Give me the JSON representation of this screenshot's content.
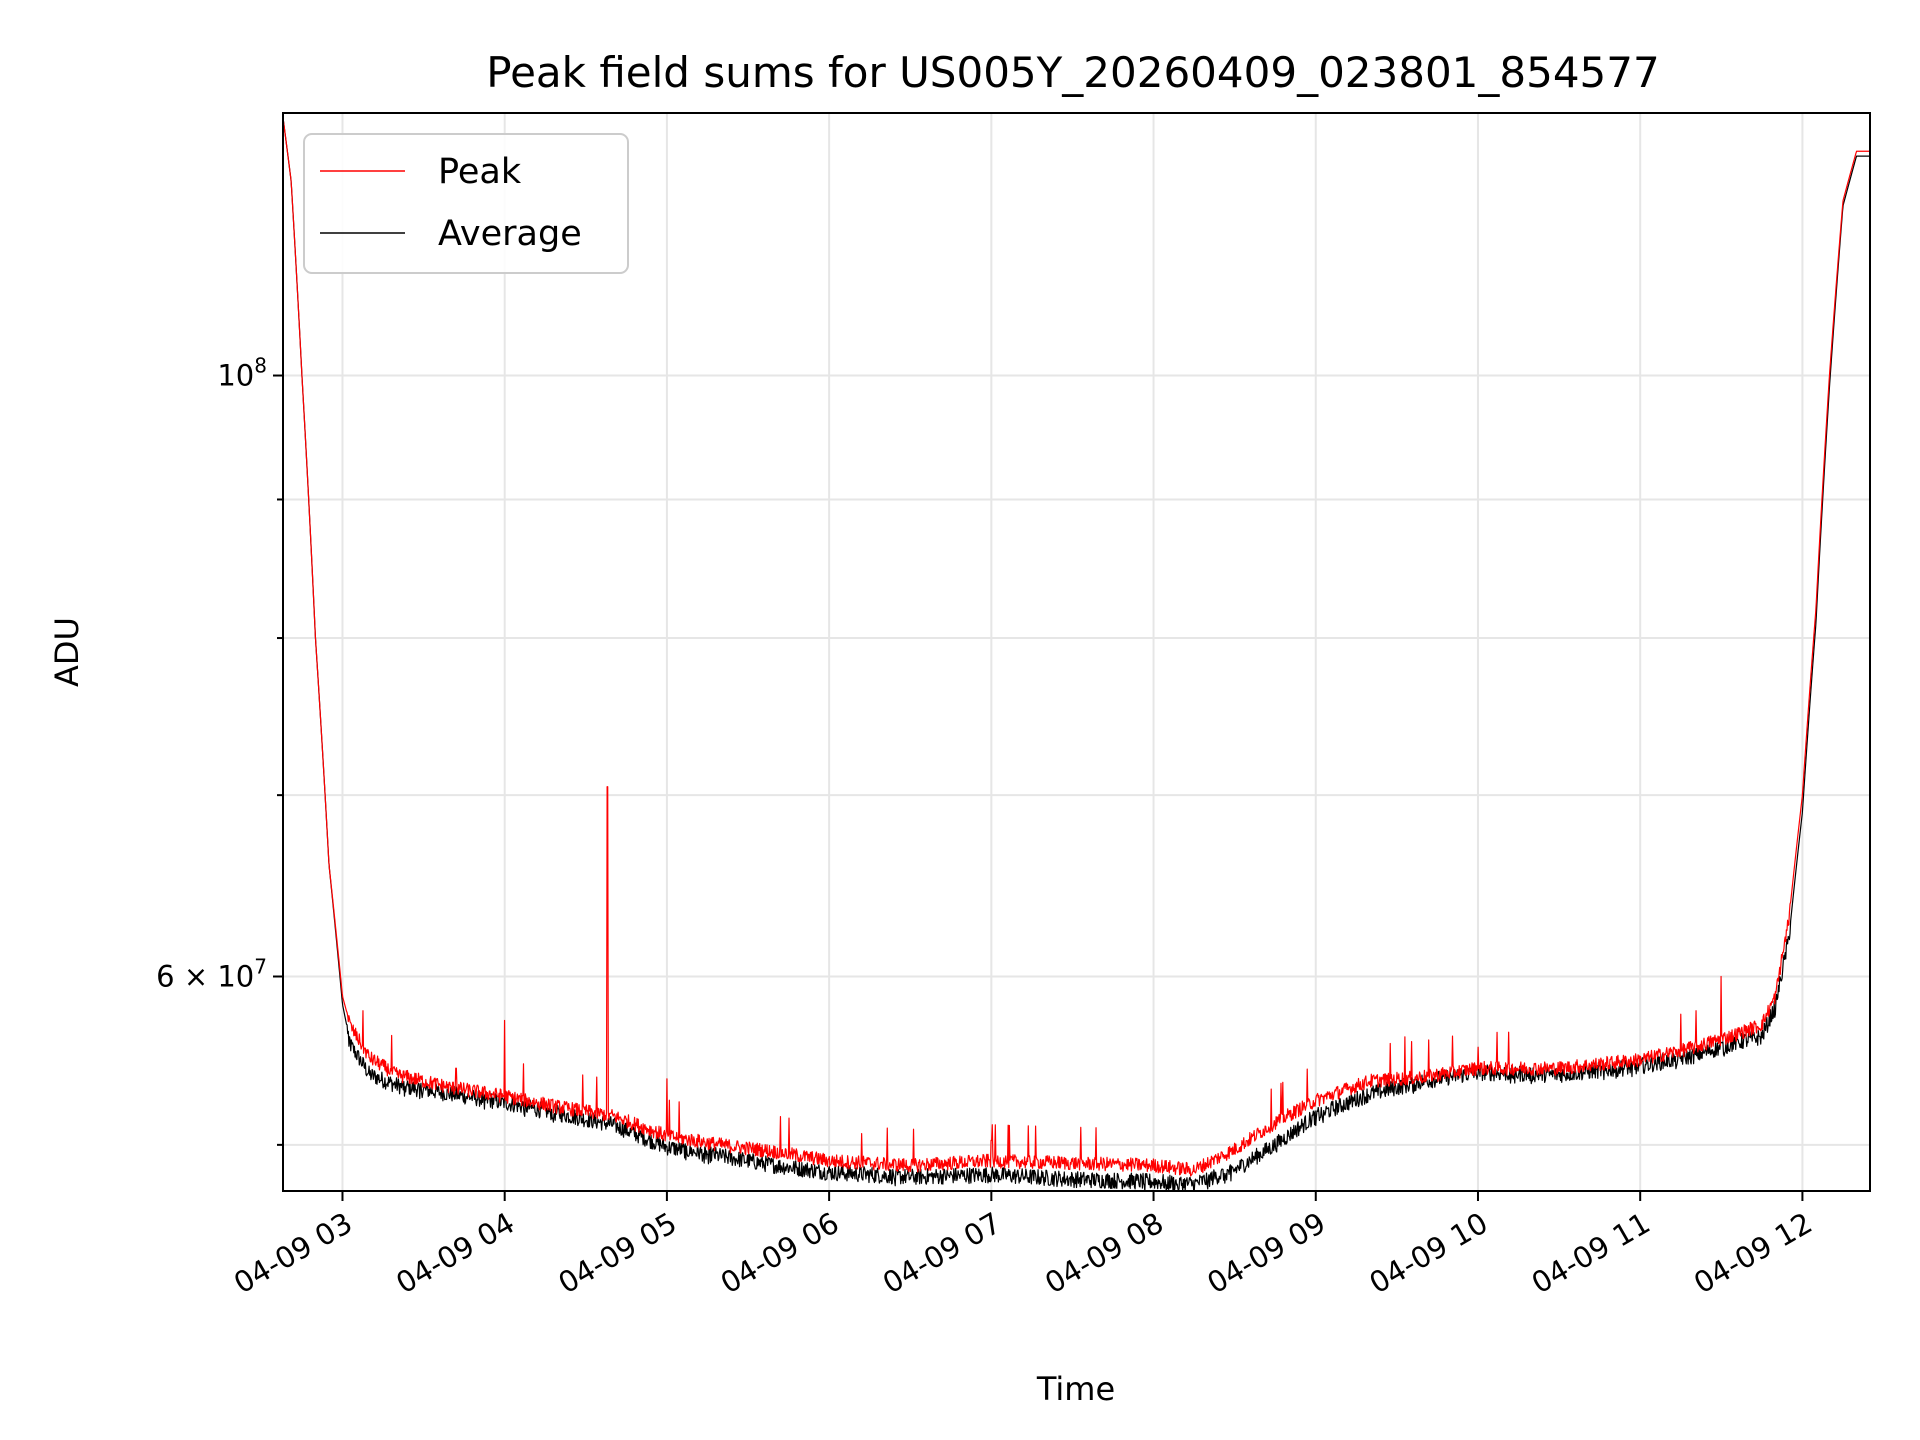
{
  "chart_data": {
    "type": "line",
    "title": "Peak field sums for US005Y_20260409_023801_854577",
    "xlabel": "Time",
    "ylabel": "ADU",
    "yscale": "log",
    "grid": true,
    "legend_position": "top-left",
    "x_range": [
      "2026-04-09 02:38",
      "2026-04-09 12:25"
    ],
    "ylim": [
      50000000,
      125000000
    ],
    "x_ticks": [
      "04-09 03",
      "04-09 04",
      "04-09 05",
      "04-09 06",
      "04-09 07",
      "04-09 08",
      "04-09 09",
      "04-09 10",
      "04-09 11",
      "04-09 12"
    ],
    "y_ticks": [
      {
        "value": 100000000,
        "base": "10",
        "exp": "8",
        "coef": ""
      },
      {
        "value": 60000000,
        "base": "10",
        "exp": "7",
        "coef": "6 × "
      }
    ],
    "y_minor_ticks": [
      52000000,
      70000000,
      80000000,
      90000000
    ],
    "series": [
      {
        "name": "Peak",
        "color": "#ff0000",
        "points": [
          [
            "2026-04-09 02:38",
            124500000
          ],
          [
            "2026-04-09 02:41",
            118000000
          ],
          [
            "2026-04-09 02:45",
            100000000
          ],
          [
            "2026-04-09 02:50",
            80000000
          ],
          [
            "2026-04-09 02:55",
            66000000
          ],
          [
            "2026-04-09 03:00",
            59000000
          ],
          [
            "2026-04-09 03:03",
            57500000
          ],
          [
            "2026-04-09 03:10",
            56000000
          ],
          [
            "2026-04-09 03:20",
            55200000
          ],
          [
            "2026-04-09 03:40",
            54600000
          ],
          [
            "2026-04-09 04:00",
            54200000
          ],
          [
            "2026-04-09 04:20",
            53700000
          ],
          [
            "2026-04-09 04:40",
            53300000
          ],
          [
            "2026-04-09 05:00",
            52400000
          ],
          [
            "2026-04-09 05:20",
            52000000
          ],
          [
            "2026-04-09 05:40",
            51700000
          ],
          [
            "2026-04-09 06:00",
            51300000
          ],
          [
            "2026-04-09 06:30",
            51100000
          ],
          [
            "2026-04-09 07:00",
            51300000
          ],
          [
            "2026-04-09 07:30",
            51200000
          ],
          [
            "2026-04-09 08:00",
            51100000
          ],
          [
            "2026-04-09 08:15",
            50900000
          ],
          [
            "2026-04-09 08:30",
            51800000
          ],
          [
            "2026-04-09 08:45",
            53000000
          ],
          [
            "2026-04-09 09:00",
            54000000
          ],
          [
            "2026-04-09 09:20",
            54900000
          ],
          [
            "2026-04-09 09:40",
            55100000
          ],
          [
            "2026-04-09 10:00",
            55500000
          ],
          [
            "2026-04-09 10:30",
            55500000
          ],
          [
            "2026-04-09 11:00",
            55900000
          ],
          [
            "2026-04-09 11:20",
            56500000
          ],
          [
            "2026-04-09 11:35",
            57100000
          ],
          [
            "2026-04-09 11:45",
            57600000
          ],
          [
            "2026-04-09 11:50",
            59000000
          ],
          [
            "2026-04-09 11:55",
            63000000
          ],
          [
            "2026-04-09 12:00",
            70000000
          ],
          [
            "2026-04-09 12:05",
            82000000
          ],
          [
            "2026-04-09 12:10",
            100000000
          ],
          [
            "2026-04-09 12:15",
            116000000
          ],
          [
            "2026-04-09 12:20",
            121000000
          ],
          [
            "2026-04-09 12:25",
            121000000
          ]
        ],
        "spikes": [
          [
            "2026-04-09 04:00",
            57800000
          ],
          [
            "2026-04-09 04:38",
            70500000
          ],
          [
            "2026-04-09 05:00",
            55000000
          ],
          [
            "2026-04-09 03:42",
            55500000
          ],
          [
            "2026-04-09 06:12",
            52500000
          ],
          [
            "2026-04-09 07:00",
            52200000
          ],
          [
            "2026-04-09 09:33",
            57000000
          ],
          [
            "2026-04-09 10:00",
            56500000
          ],
          [
            "2026-04-09 11:30",
            60000000
          ]
        ]
      },
      {
        "name": "Average",
        "color": "#000000",
        "points": [
          [
            "2026-04-09 02:38",
            124500000
          ],
          [
            "2026-04-09 02:41",
            118000000
          ],
          [
            "2026-04-09 02:45",
            100000000
          ],
          [
            "2026-04-09 02:50",
            80000000
          ],
          [
            "2026-04-09 02:55",
            66000000
          ],
          [
            "2026-04-09 03:00",
            58600000
          ],
          [
            "2026-04-09 03:03",
            56600000
          ],
          [
            "2026-04-09 03:10",
            55200000
          ],
          [
            "2026-04-09 03:20",
            54700000
          ],
          [
            "2026-04-09 03:40",
            54300000
          ],
          [
            "2026-04-09 04:00",
            53900000
          ],
          [
            "2026-04-09 04:20",
            53400000
          ],
          [
            "2026-04-09 04:40",
            52900000
          ],
          [
            "2026-04-09 05:00",
            51900000
          ],
          [
            "2026-04-09 05:20",
            51500000
          ],
          [
            "2026-04-09 05:40",
            51100000
          ],
          [
            "2026-04-09 06:00",
            50800000
          ],
          [
            "2026-04-09 06:30",
            50600000
          ],
          [
            "2026-04-09 07:00",
            50700000
          ],
          [
            "2026-04-09 07:30",
            50500000
          ],
          [
            "2026-04-09 08:00",
            50400000
          ],
          [
            "2026-04-09 08:15",
            50300000
          ],
          [
            "2026-04-09 08:30",
            50900000
          ],
          [
            "2026-04-09 08:45",
            52000000
          ],
          [
            "2026-04-09 09:00",
            53300000
          ],
          [
            "2026-04-09 09:20",
            54300000
          ],
          [
            "2026-04-09 09:40",
            54900000
          ],
          [
            "2026-04-09 10:00",
            55300000
          ],
          [
            "2026-04-09 10:30",
            55200000
          ],
          [
            "2026-04-09 11:00",
            55600000
          ],
          [
            "2026-04-09 11:20",
            56100000
          ],
          [
            "2026-04-09 11:35",
            56700000
          ],
          [
            "2026-04-09 11:45",
            57000000
          ],
          [
            "2026-04-09 11:50",
            58500000
          ],
          [
            "2026-04-09 11:55",
            62000000
          ],
          [
            "2026-04-09 12:00",
            69000000
          ],
          [
            "2026-04-09 12:05",
            81000000
          ],
          [
            "2026-04-09 12:10",
            99000000
          ],
          [
            "2026-04-09 12:15",
            115500000
          ],
          [
            "2026-04-09 12:20",
            120500000
          ],
          [
            "2026-04-09 12:25",
            120500000
          ]
        ]
      }
    ]
  }
}
